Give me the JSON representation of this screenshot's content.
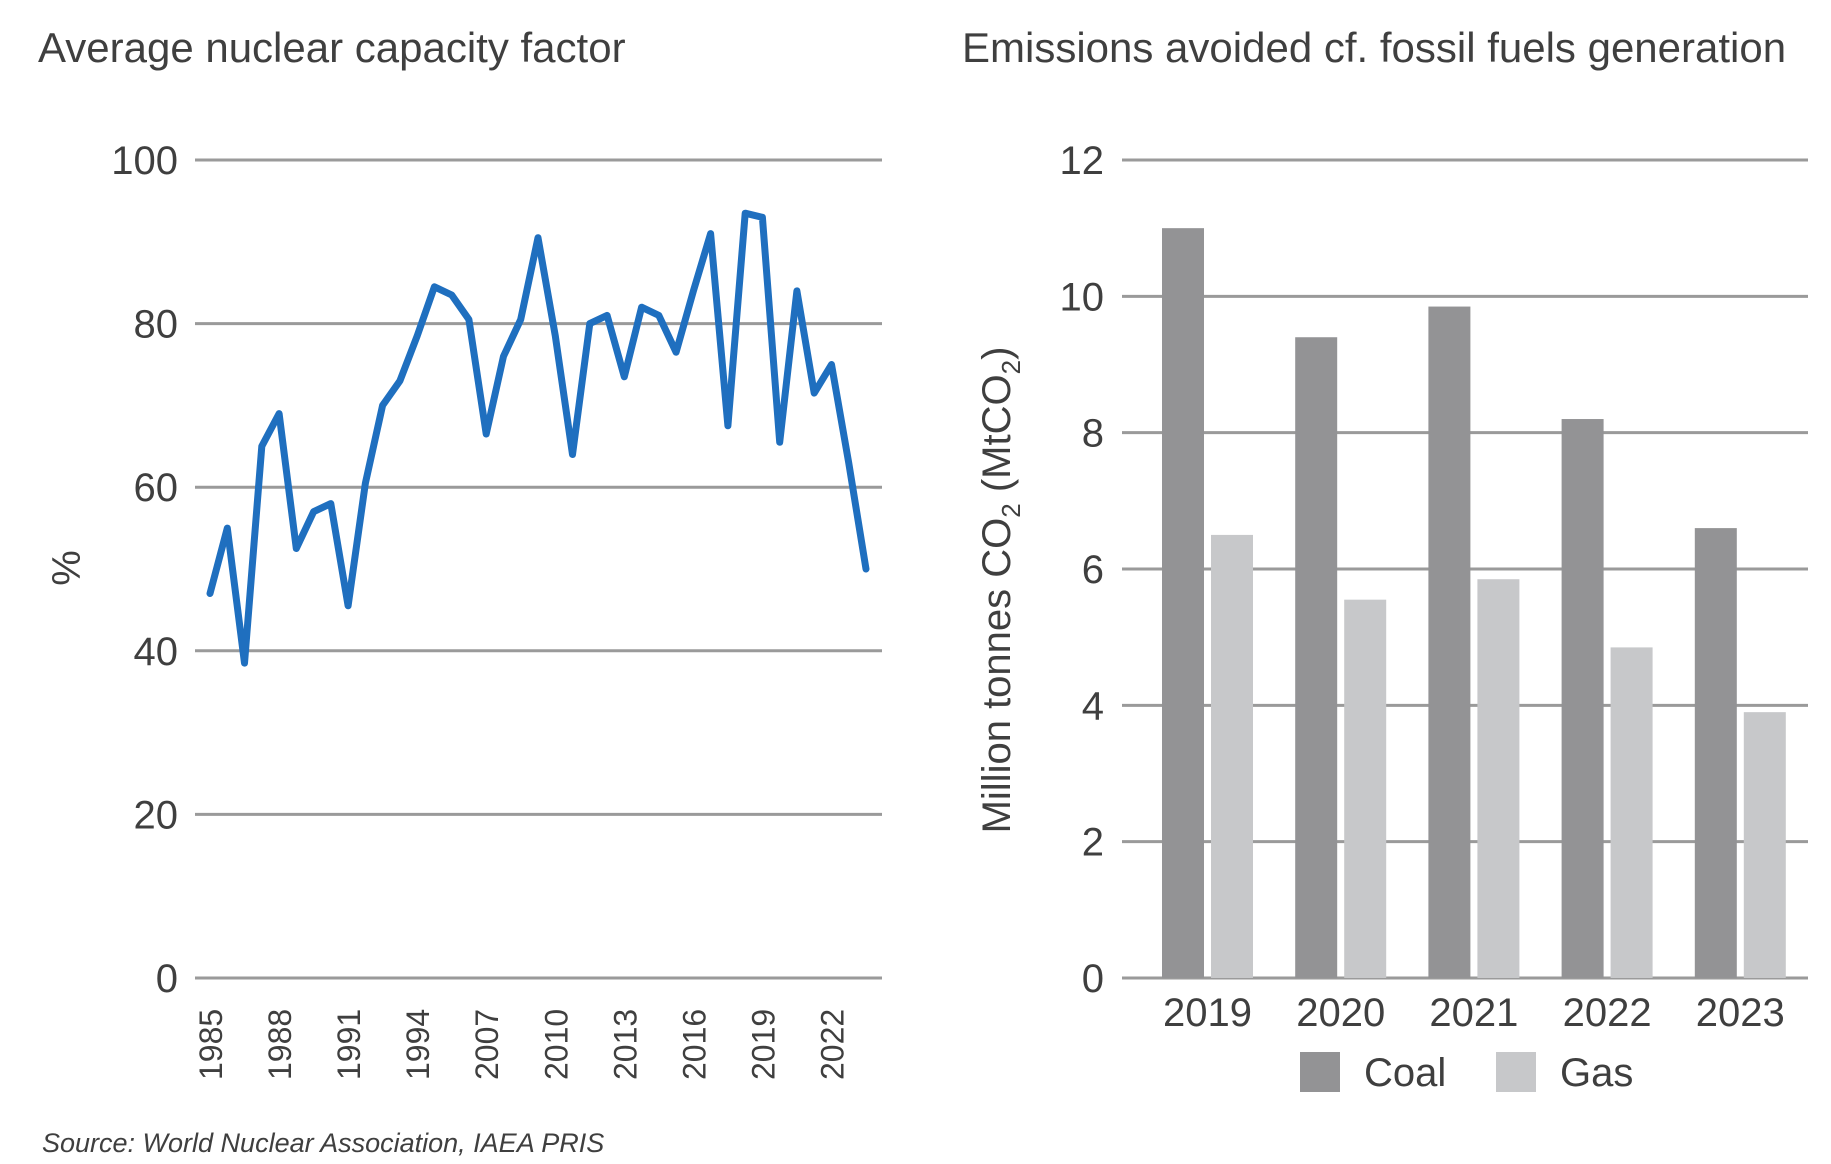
{
  "source_note": "Source: World Nuclear Association, IAEA PRIS",
  "chart_data": [
    {
      "type": "line",
      "title": "Average nuclear capacity factor",
      "ylabel": "%",
      "xlabel": "",
      "ylim": [
        0,
        100
      ],
      "yticks": [
        "0",
        "20",
        "40",
        "60",
        "80",
        "100"
      ],
      "x_tick_labels": [
        "1985",
        "1988",
        "1991",
        "1994",
        "2007",
        "2010",
        "2013",
        "2016",
        "2019",
        "2022"
      ],
      "grid": true,
      "color": "#1f6fbf",
      "series": [
        {
          "values": [
            47,
            55,
            38.5,
            65,
            69,
            52.5,
            57,
            58,
            45.5,
            60.5,
            70,
            73,
            78.5,
            84.5,
            83.5,
            80.5,
            66.5,
            76,
            80.5,
            90.5,
            78.5,
            64,
            80,
            81,
            73.5,
            82,
            81,
            76.5,
            84,
            91,
            67.5,
            93.5,
            93,
            65.5,
            84,
            71.5,
            75,
            63,
            50
          ]
        }
      ]
    },
    {
      "type": "bar",
      "title": "Emissions avoided cf. fossil fuels generation",
      "ylabel_main": "Million tonnes CO",
      "ylabel_sub": "2",
      "ylabel_tail": " (MtCO",
      "ylabel_sub2": "2",
      "ylabel_end": ")",
      "xlabel": "",
      "ylim": [
        0,
        12
      ],
      "yticks": [
        "0",
        "2",
        "4",
        "6",
        "8",
        "10",
        "12"
      ],
      "categories": [
        "2019",
        "2020",
        "2021",
        "2022",
        "2023"
      ],
      "grid": true,
      "legend_position": "bottom",
      "series": [
        {
          "name": "Coal",
          "color": "#939395",
          "values": [
            11.0,
            9.4,
            9.85,
            8.2,
            6.6
          ]
        },
        {
          "name": "Gas",
          "color": "#c7c8ca",
          "values": [
            6.5,
            5.55,
            5.85,
            4.85,
            3.9
          ]
        }
      ]
    }
  ]
}
